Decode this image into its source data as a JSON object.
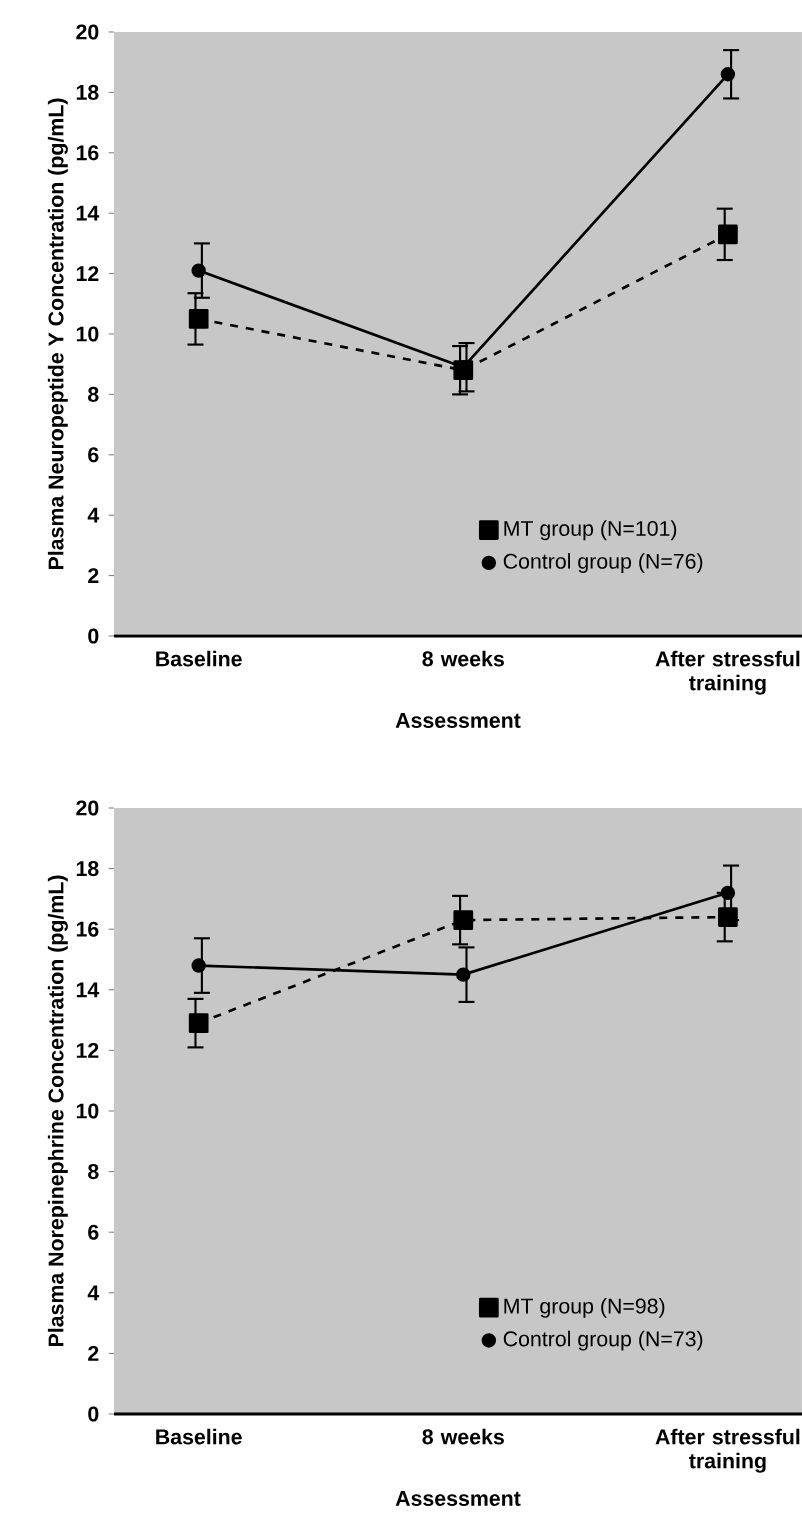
{
  "chart_data": [
    {
      "type": "line",
      "xlabel": "Assessment",
      "ylabel": "Plasma Neuropeptide Y Concentration (pg/mL)",
      "categories": [
        "Baseline",
        "8 weeks",
        "After stressful training"
      ],
      "ylim": [
        0,
        20
      ],
      "yticks": [
        0,
        2,
        4,
        6,
        8,
        10,
        12,
        14,
        16,
        18,
        20
      ],
      "legend": "bottom right",
      "series": [
        {
          "name": "MT group (N=101)",
          "color": "#000000",
          "marker": "square",
          "line_style": "dashed",
          "values": [
            10.5,
            8.8,
            13.3
          ],
          "errors": [
            0.85,
            0.8,
            0.85
          ]
        },
        {
          "name": "Control group (N=76)",
          "color": "#000000",
          "marker": "circle",
          "line_style": "solid",
          "values": [
            12.1,
            8.9,
            18.6
          ],
          "errors": [
            0.9,
            0.8,
            0.8
          ]
        }
      ]
    },
    {
      "type": "line",
      "xlabel": "Assessment",
      "ylabel": "Plasma Norepinephrine Concentration (pg/mL)",
      "categories": [
        "Baseline",
        "8 weeks",
        "After stressful training"
      ],
      "ylim": [
        0,
        20
      ],
      "yticks": [
        0,
        2,
        4,
        6,
        8,
        10,
        12,
        14,
        16,
        18,
        20
      ],
      "legend": "bottom right",
      "series": [
        {
          "name": "MT group (N=98)",
          "color": "#000000",
          "marker": "square",
          "line_style": "dashed",
          "values": [
            12.9,
            16.3,
            16.4
          ],
          "errors": [
            0.8,
            0.8,
            0.8
          ]
        },
        {
          "name": "Control group (N=73)",
          "color": "#000000",
          "marker": "circle",
          "line_style": "solid",
          "values": [
            14.8,
            14.5,
            17.2
          ],
          "errors": [
            0.9,
            0.9,
            0.9
          ]
        }
      ]
    }
  ]
}
